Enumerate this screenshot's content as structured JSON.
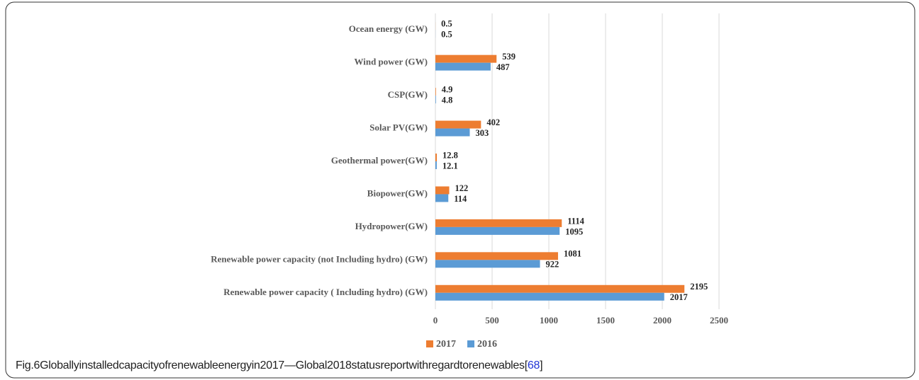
{
  "chart_data": {
    "type": "hbar",
    "categories": [
      "Ocean energy (GW)",
      "Wind power (GW)",
      "CSP(GW)",
      "Solar PV(GW)",
      "Geothermal power(GW)",
      "Biopower(GW)",
      "Hydropower(GW)",
      "Renewable power capacity (not Including hydro) (GW)",
      "Renewable power capacity ( Including hydro) (GW)"
    ],
    "series": [
      {
        "name": "2017",
        "color": "#ed7d31",
        "values": [
          0.5,
          539,
          4.9,
          402,
          12.8,
          122,
          1114,
          1081,
          2195
        ]
      },
      {
        "name": "2016",
        "color": "#5b9bd5",
        "values": [
          0.5,
          487,
          4.8,
          303,
          12.1,
          114,
          1095,
          922,
          2017
        ]
      }
    ],
    "xlim": [
      0,
      2500
    ],
    "xticks": [
      0,
      500,
      1000,
      1500,
      2000,
      2500
    ],
    "grid": true,
    "legend": "bottom"
  },
  "caption": {
    "text": "Fig.6Globallyinstalledcapacityofrenewableenergyin2017—Global2018statusreportwithregardtorenewables[",
    "ref": "68",
    "close": "]"
  }
}
